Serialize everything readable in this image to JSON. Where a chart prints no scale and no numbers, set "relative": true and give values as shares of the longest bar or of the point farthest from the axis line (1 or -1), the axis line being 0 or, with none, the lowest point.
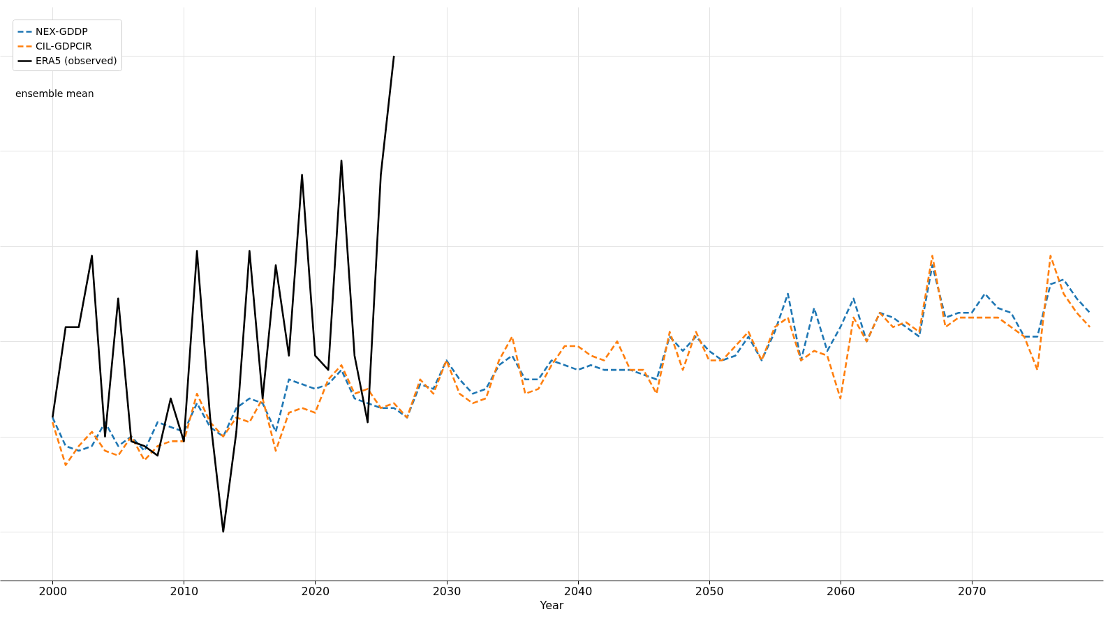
{
  "chart_data": {
    "type": "line",
    "xlabel": "Year",
    "relative": true,
    "grid": true,
    "legend": "top left",
    "annotations": [
      "ensemble mean"
    ],
    "xlim": [
      1996,
      2080
    ],
    "xticks": [
      2000,
      2010,
      2020,
      2030,
      2040,
      2050,
      2060,
      2070
    ],
    "series": [
      {
        "name": "NEX-GDDP",
        "color": "#1f77b4",
        "line_style": "dashed",
        "x": [
          2000,
          2001,
          2002,
          2003,
          2004,
          2005,
          2006,
          2007,
          2008,
          2009,
          2010,
          2011,
          2012,
          2013,
          2014,
          2015,
          2016,
          2017,
          2018,
          2019,
          2020,
          2021,
          2022,
          2023,
          2024,
          2025,
          2026,
          2027,
          2028,
          2029,
          2030,
          2031,
          2032,
          2033,
          2034,
          2035,
          2036,
          2037,
          2038,
          2039,
          2040,
          2041,
          2042,
          2043,
          2044,
          2045,
          2046,
          2047,
          2048,
          2049,
          2050,
          2051,
          2052,
          2053,
          2054,
          2055,
          2056,
          2057,
          2058,
          2059,
          2060,
          2061,
          2062,
          2063,
          2064,
          2065,
          2066,
          2067,
          2068,
          2069,
          2070,
          2071,
          2072,
          2073,
          2074,
          2075,
          2076,
          2077,
          2078,
          2079
        ],
        "values": [
          0.24,
          0.18,
          0.17,
          0.18,
          0.23,
          0.18,
          0.2,
          0.17,
          0.23,
          0.22,
          0.21,
          0.27,
          0.22,
          0.2,
          0.26,
          0.28,
          0.27,
          0.21,
          0.32,
          0.31,
          0.3,
          0.31,
          0.34,
          0.28,
          0.27,
          0.26,
          0.26,
          0.24,
          0.31,
          0.3,
          0.36,
          0.32,
          0.29,
          0.3,
          0.35,
          0.37,
          0.32,
          0.32,
          0.36,
          0.35,
          0.34,
          0.35,
          0.34,
          0.34,
          0.34,
          0.33,
          0.32,
          0.41,
          0.38,
          0.41,
          0.38,
          0.36,
          0.37,
          0.41,
          0.36,
          0.42,
          0.5,
          0.36,
          0.47,
          0.38,
          0.43,
          0.49,
          0.4,
          0.46,
          0.45,
          0.43,
          0.41,
          0.56,
          0.45,
          0.46,
          0.46,
          0.5,
          0.47,
          0.46,
          0.41,
          0.41,
          0.52,
          0.53,
          0.49,
          0.46
        ]
      },
      {
        "name": "CIL-GDPCIR",
        "color": "#ff7f0e",
        "line_style": "dashed",
        "x": [
          2000,
          2001,
          2002,
          2003,
          2004,
          2005,
          2006,
          2007,
          2008,
          2009,
          2010,
          2011,
          2012,
          2013,
          2014,
          2015,
          2016,
          2017,
          2018,
          2019,
          2020,
          2021,
          2022,
          2023,
          2024,
          2025,
          2026,
          2027,
          2028,
          2029,
          2030,
          2031,
          2032,
          2033,
          2034,
          2035,
          2036,
          2037,
          2038,
          2039,
          2040,
          2041,
          2042,
          2043,
          2044,
          2045,
          2046,
          2047,
          2048,
          2049,
          2050,
          2051,
          2052,
          2053,
          2054,
          2055,
          2056,
          2057,
          2058,
          2059,
          2060,
          2061,
          2062,
          2063,
          2064,
          2065,
          2066,
          2067,
          2068,
          2069,
          2070,
          2071,
          2072,
          2073,
          2074,
          2075,
          2076,
          2077,
          2078,
          2079
        ],
        "values": [
          0.23,
          0.14,
          0.18,
          0.21,
          0.17,
          0.16,
          0.2,
          0.15,
          0.18,
          0.19,
          0.19,
          0.29,
          0.23,
          0.2,
          0.24,
          0.23,
          0.28,
          0.17,
          0.25,
          0.26,
          0.25,
          0.32,
          0.35,
          0.29,
          0.3,
          0.26,
          0.27,
          0.24,
          0.32,
          0.29,
          0.36,
          0.29,
          0.27,
          0.28,
          0.36,
          0.41,
          0.29,
          0.3,
          0.35,
          0.39,
          0.39,
          0.37,
          0.36,
          0.4,
          0.34,
          0.34,
          0.29,
          0.42,
          0.34,
          0.42,
          0.36,
          0.36,
          0.39,
          0.42,
          0.36,
          0.43,
          0.45,
          0.36,
          0.38,
          0.37,
          0.28,
          0.45,
          0.4,
          0.46,
          0.43,
          0.44,
          0.42,
          0.58,
          0.43,
          0.45,
          0.45,
          0.45,
          0.45,
          0.43,
          0.41,
          0.34,
          0.58,
          0.5,
          0.46,
          0.43
        ]
      },
      {
        "name": "ERA5 (observed)",
        "color": "#000000",
        "line_style": "solid",
        "x": [
          2000,
          2001,
          2002,
          2003,
          2004,
          2005,
          2006,
          2007,
          2008,
          2009,
          2010,
          2011,
          2012,
          2013,
          2014,
          2015,
          2016,
          2017,
          2018,
          2019,
          2020,
          2021,
          2022,
          2023,
          2024,
          2025,
          2026
        ],
        "values": [
          0.24,
          0.43,
          0.43,
          0.58,
          0.2,
          0.49,
          0.19,
          0.18,
          0.16,
          0.28,
          0.19,
          0.59,
          0.24,
          0,
          0.21,
          0.59,
          0.28,
          0.56,
          0.37,
          0.75,
          0.37,
          0.34,
          0.78,
          0.37,
          0.23,
          0.75,
          1
        ]
      }
    ]
  }
}
